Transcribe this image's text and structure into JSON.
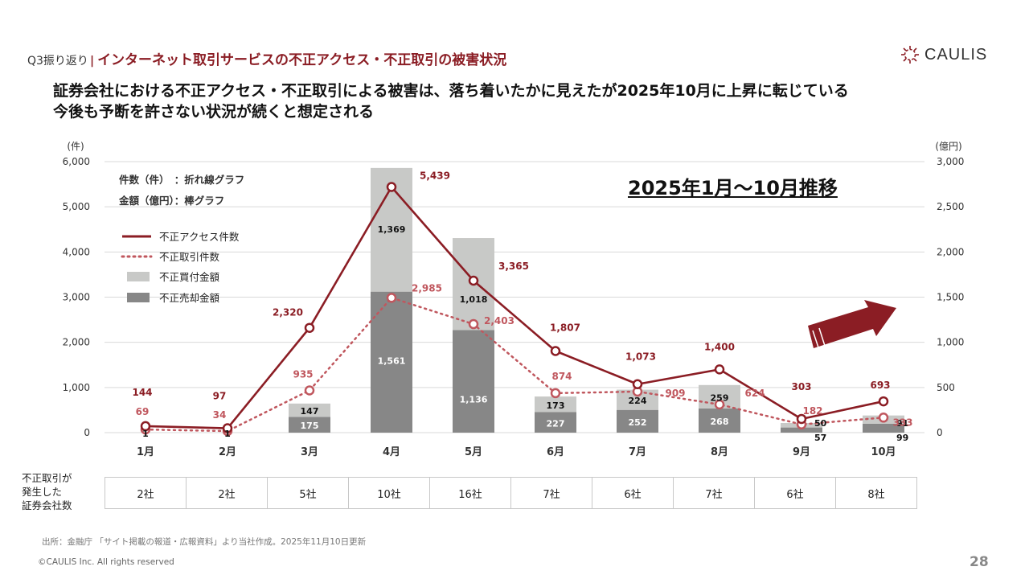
{
  "header": {
    "section_label": "Q3振り返り",
    "divider": "|",
    "title": "インターネット取引サービスの不正アクセス・不正取引の被害状況",
    "logo_text": "CAULIS"
  },
  "headline": {
    "line1": "証券会社における不正アクセス・不正取引による被害は、落ち着いたかに見えたが2025年10月に上昇に転じている",
    "line2": "今後も予断を許さない状況が続くと想定される"
  },
  "chart_data": {
    "type": "bar+line",
    "subtitle": "2025年1月～10月推移",
    "categories": [
      "1月",
      "2月",
      "3月",
      "4月",
      "5月",
      "6月",
      "7月",
      "8月",
      "9月",
      "10月"
    ],
    "left_axis": {
      "unit": "(件)",
      "ylim": [
        0,
        6000
      ],
      "ticks": [
        "0",
        "1,000",
        "2,000",
        "3,000",
        "4,000",
        "5,000",
        "6,000"
      ]
    },
    "right_axis": {
      "unit": "(億円)",
      "ylim": [
        0,
        3000
      ],
      "ticks": [
        "0",
        "500",
        "1,000",
        "1,500",
        "2,000",
        "2,500",
        "3,000"
      ]
    },
    "legend_note_1": "件数（件）　：折れ線グラフ",
    "legend_note_2": "金額（億円）：棒グラフ",
    "series": [
      {
        "name": "不正アクセス件数",
        "kind": "line",
        "axis": "left",
        "color": "#8b1d24",
        "values": [
          144,
          97,
          2320,
          5439,
          3365,
          1807,
          1073,
          1400,
          303,
          693
        ],
        "labels": [
          "144",
          "97",
          "2,320",
          "5,439",
          "3,365",
          "1,807",
          "1,073",
          "1,400",
          "303",
          "693"
        ]
      },
      {
        "name": "不正取引件数",
        "kind": "dotted-line",
        "axis": "left",
        "color": "#c0575e",
        "values": [
          69,
          34,
          935,
          2985,
          2403,
          874,
          909,
          624,
          182,
          333
        ],
        "labels": [
          "69",
          "34",
          "935",
          "2,985",
          "2,403",
          "874",
          "909",
          "624",
          "182",
          "333"
        ]
      },
      {
        "name": "不正買付金額",
        "kind": "stacked-bar-top",
        "axis": "right",
        "color": "#c8c9c7",
        "values": [
          1,
          1,
          147,
          1369,
          1018,
          173,
          224,
          259,
          50,
          91
        ],
        "labels": [
          "1",
          "1",
          "147",
          "1,369",
          "1,018",
          "173",
          "224",
          "259",
          "50",
          "91"
        ]
      },
      {
        "name": "不正売却金額",
        "kind": "stacked-bar-bottom",
        "axis": "right",
        "color": "#878787",
        "values": [
          0,
          0,
          175,
          1561,
          1136,
          227,
          252,
          268,
          57,
          99
        ],
        "labels": [
          "",
          "",
          "175",
          "1,561",
          "1,136",
          "227",
          "252",
          "268",
          "57",
          "99"
        ]
      }
    ]
  },
  "companies_table": {
    "row_label_lines": [
      "不正取引が",
      "発生した",
      "証券会社数"
    ],
    "values": [
      "2社",
      "2社",
      "5社",
      "10社",
      "16社",
      "7社",
      "6社",
      "7社",
      "6社",
      "8社"
    ]
  },
  "footer": {
    "source": "出所：金融庁 「サイト掲載の報道・広報資料」より当社作成。2025年11月10日更新",
    "copyright": "©CAULIS Inc. All rights reserved",
    "page_number": "28"
  },
  "colors": {
    "brand": "#8b1d24",
    "line_primary": "#8b1d24",
    "line_secondary": "#c0575e",
    "bar_light": "#c8c9c7",
    "bar_dark": "#878787"
  }
}
